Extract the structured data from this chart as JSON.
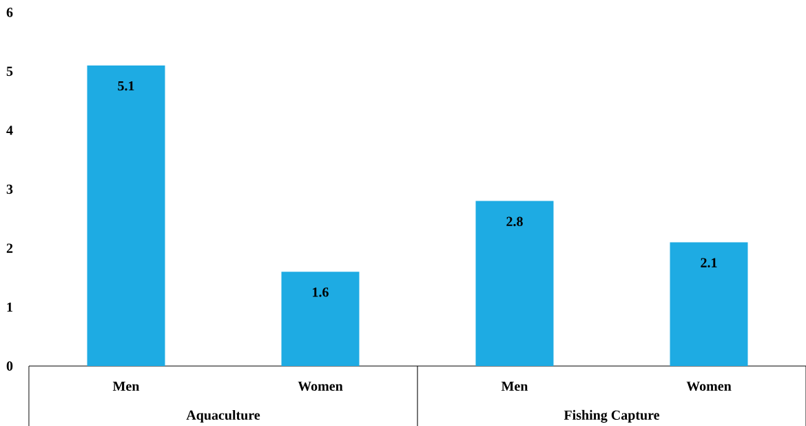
{
  "chart_data": {
    "type": "bar",
    "categories": [
      "Men",
      "Women",
      "Men",
      "Women"
    ],
    "values": [
      5.1,
      1.6,
      2.8,
      2.1
    ],
    "color": "#1eabe3",
    "ylim": [
      0,
      6
    ],
    "yticks": [
      0,
      1,
      2,
      3,
      4,
      5,
      6
    ],
    "data_labels": true,
    "grid": false,
    "annotations": [
      "Aquaculture",
      "Fishing Capture"
    ]
  }
}
